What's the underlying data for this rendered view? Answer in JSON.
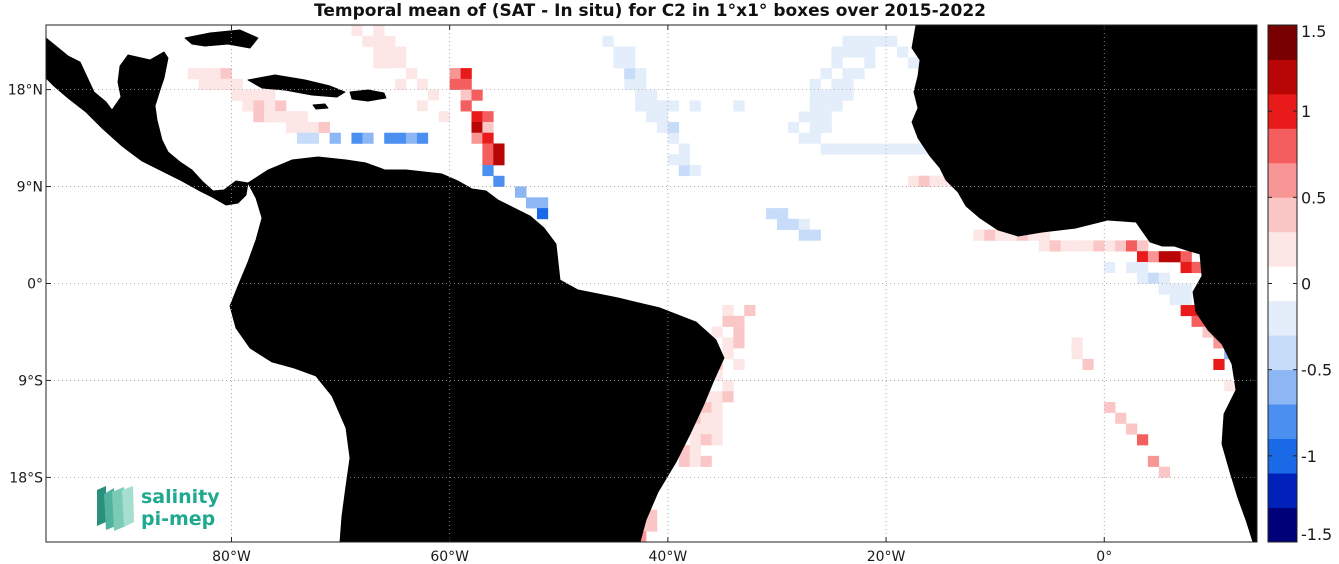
{
  "title": "Temporal mean of (SAT - In situ) for C2 in 1°x1° boxes over 2015-2022",
  "map": {
    "lon_range": [
      -97,
      14
    ],
    "lat_range": [
      -24,
      24
    ],
    "land_color": "#808080",
    "coastline_color": "#000000",
    "grid_style": "dotted",
    "lon_ticks": [
      {
        "value": -80,
        "label": "80°W"
      },
      {
        "value": -60,
        "label": "60°W"
      },
      {
        "value": -40,
        "label": "40°W"
      },
      {
        "value": -20,
        "label": "20°W"
      },
      {
        "value": 0,
        "label": "0°"
      }
    ],
    "lat_ticks": [
      {
        "value": 18,
        "label": "18°N"
      },
      {
        "value": 9,
        "label": "9°N"
      },
      {
        "value": 0,
        "label": "0°"
      },
      {
        "value": -9,
        "label": "9°S"
      },
      {
        "value": -18,
        "label": "18°S"
      }
    ]
  },
  "colorbar": {
    "min": -1.5,
    "max": 1.5,
    "ticks": [
      {
        "value": 1.5,
        "label": "1.5"
      },
      {
        "value": 1,
        "label": "1"
      },
      {
        "value": 0.5,
        "label": "0.5"
      },
      {
        "value": 0,
        "label": "0"
      },
      {
        "value": -0.5,
        "label": "-0.5"
      },
      {
        "value": -1,
        "label": "-1"
      },
      {
        "value": -1.5,
        "label": "-1.5"
      }
    ],
    "colors_low_to_high": [
      "#000078",
      "#0022bb",
      "#1a6ae8",
      "#4b8ff0",
      "#8cb6f4",
      "#c6dcf8",
      "#e4eefb",
      "#ffffff",
      "#fde6e6",
      "#fbc6c6",
      "#f89595",
      "#f45e5e",
      "#e81a1a",
      "#b80606",
      "#780000"
    ]
  },
  "logo": {
    "line1": "salinity",
    "line2": "pi-mep",
    "color": "#1fa98f"
  }
}
